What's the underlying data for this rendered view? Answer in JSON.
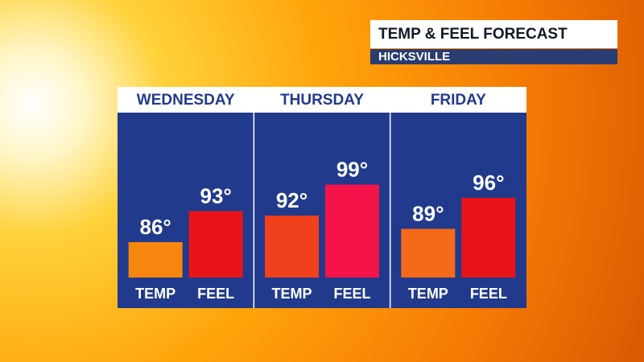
{
  "chart_data": {
    "type": "bar",
    "title": "TEMP & FEEL FORECAST",
    "subtitle": "HICKSVILLE",
    "categories": [
      "WEDNESDAY",
      "THURSDAY",
      "FRIDAY"
    ],
    "series": [
      {
        "name": "TEMP",
        "values": [
          86,
          92,
          89
        ],
        "value_labels": [
          "86°",
          "92°",
          "89°"
        ],
        "colors": [
          "#f7860f",
          "#f0401c",
          "#f56a18"
        ]
      },
      {
        "name": "FEEL",
        "values": [
          93,
          99,
          96
        ],
        "value_labels": [
          "93°",
          "99°",
          "96°"
        ],
        "colors": [
          "#e8141a",
          "#f5144a",
          "#e8141a"
        ]
      }
    ],
    "ylim": [
      78,
      100
    ]
  }
}
